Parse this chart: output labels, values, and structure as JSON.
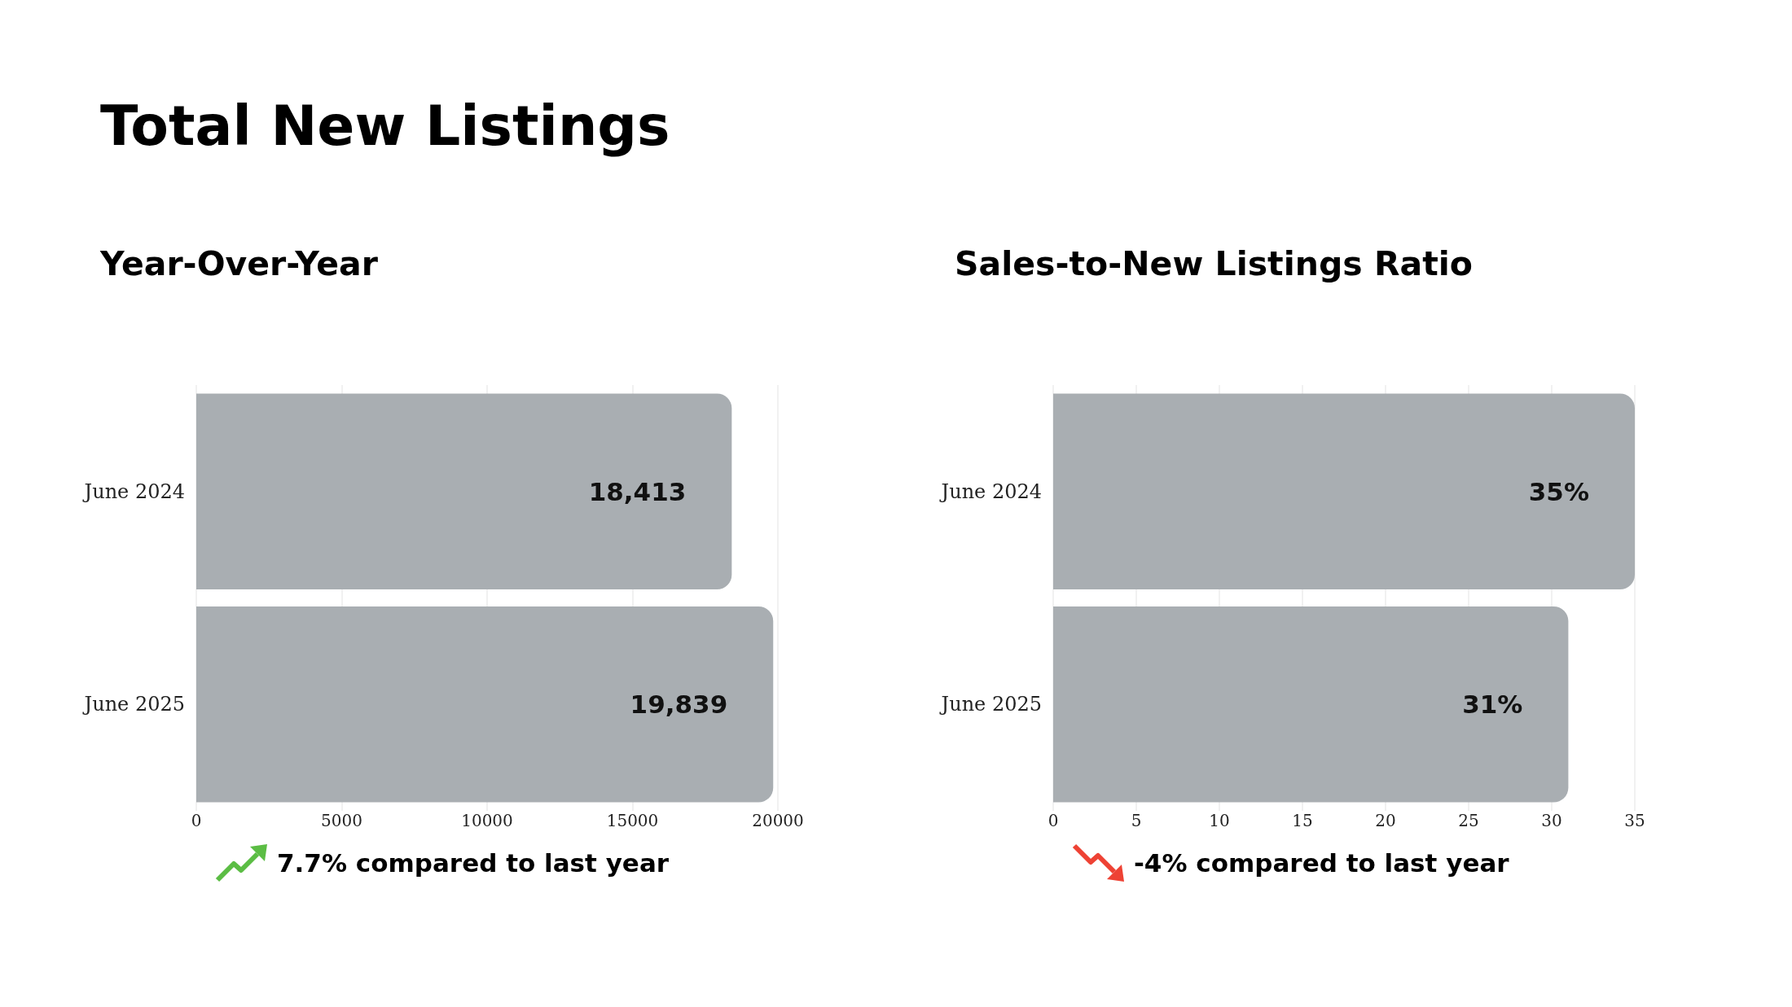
{
  "chart_data": [
    {
      "type": "bar",
      "orientation": "horizontal",
      "title": "Total New Listings",
      "subtitle": "Year-Over-Year",
      "categories": [
        "June 2024",
        "June 2025"
      ],
      "values": [
        18413,
        19839
      ],
      "color": "#a9aeb2",
      "value_labels": [
        "18,413",
        "19,839"
      ],
      "xlim": [
        0,
        20000
      ],
      "xticks": [
        0,
        5000,
        10000,
        15000,
        20000
      ],
      "grid": "x",
      "annotations": [
        "7.7% compared to last year"
      ]
    },
    {
      "type": "bar",
      "orientation": "horizontal",
      "title": "Sales-to-New Listings Ratio",
      "categories": [
        "June 2024",
        "June 2025"
      ],
      "values": [
        35,
        31
      ],
      "color": "#a9aeb2",
      "value_labels": [
        "35%",
        "31%"
      ],
      "xlim": [
        0,
        35
      ],
      "xticks": [
        0,
        5,
        10,
        15,
        20,
        25,
        30,
        35
      ],
      "grid": "x",
      "annotations": [
        "-4% compared to last year"
      ]
    }
  ]
}
